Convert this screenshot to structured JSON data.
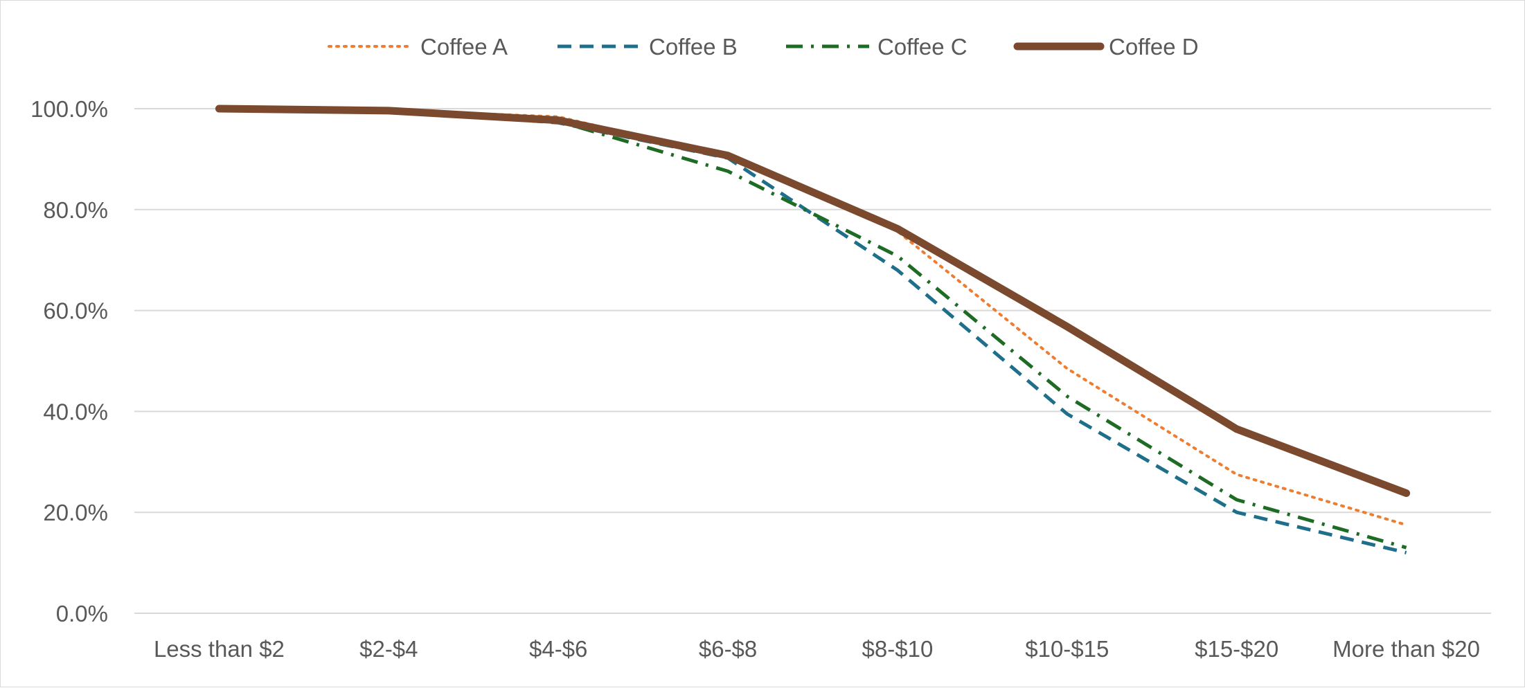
{
  "chart_data": {
    "type": "line",
    "title": "",
    "xlabel": "",
    "ylabel": "",
    "categories": [
      "Less than $2",
      "$2-$4",
      "$4-$6",
      "$6-$8",
      "$8-$10",
      "$10-$15",
      "$15-$20",
      "More than $20"
    ],
    "y_ticks": [
      "0.0%",
      "20.0%",
      "40.0%",
      "60.0%",
      "80.0%",
      "100.0%"
    ],
    "ylim": [
      0,
      100
    ],
    "y_format": "percent_1dp",
    "grid": "horizontal",
    "legend_position": "top",
    "series": [
      {
        "name": "Coffee A",
        "color": "#ED7D31",
        "style": "dotted",
        "values": [
          100.0,
          99.7,
          98.4,
          90.5,
          75.7,
          48.5,
          27.5,
          17.5
        ]
      },
      {
        "name": "Coffee B",
        "color": "#1F6F8B",
        "style": "dashed",
        "values": [
          100.0,
          99.6,
          97.2,
          90.2,
          68.0,
          39.5,
          20.0,
          12.0
        ]
      },
      {
        "name": "Coffee C",
        "color": "#1E6B24",
        "style": "dash-dot",
        "values": [
          100.0,
          99.6,
          97.5,
          87.6,
          70.8,
          43.0,
          22.5,
          13.0
        ]
      },
      {
        "name": "Coffee D",
        "color": "#7B4A2E",
        "style": "solid",
        "values": [
          100.0,
          99.6,
          97.7,
          90.7,
          76.2,
          56.8,
          36.5,
          23.8
        ]
      }
    ]
  }
}
